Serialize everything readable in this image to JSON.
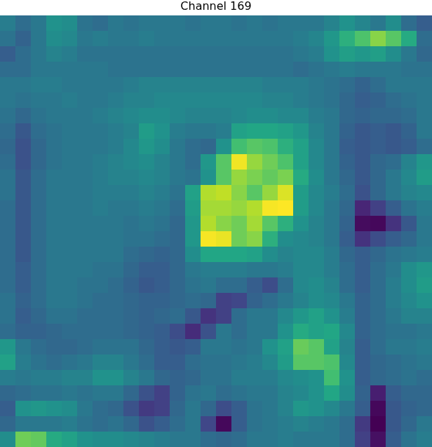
{
  "chart_data": {
    "type": "heatmap",
    "title": "Channel 169",
    "tick_labels": false,
    "cells": [
      [
        0.42,
        0.36,
        0.4,
        0.5,
        0.48,
        0.38,
        0.36,
        0.4,
        0.38,
        0.4,
        0.4,
        0.4,
        0.38,
        0.4,
        0.4,
        0.38,
        0.4,
        0.38,
        0.4,
        0.4,
        0.4,
        0.44,
        0.5,
        0.45,
        0.4,
        0.48,
        0.36,
        0.3
      ],
      [
        0.38,
        0.32,
        0.4,
        0.48,
        0.46,
        0.4,
        0.42,
        0.4,
        0.4,
        0.42,
        0.4,
        0.4,
        0.4,
        0.4,
        0.4,
        0.4,
        0.4,
        0.4,
        0.4,
        0.42,
        0.45,
        0.52,
        0.62,
        0.7,
        0.8,
        0.72,
        0.6,
        0.36
      ],
      [
        0.3,
        0.36,
        0.4,
        0.44,
        0.42,
        0.38,
        0.38,
        0.38,
        0.38,
        0.38,
        0.38,
        0.38,
        0.38,
        0.38,
        0.38,
        0.38,
        0.38,
        0.38,
        0.38,
        0.4,
        0.42,
        0.5,
        0.55,
        0.52,
        0.55,
        0.48,
        0.4,
        0.34
      ],
      [
        0.36,
        0.36,
        0.4,
        0.4,
        0.4,
        0.4,
        0.4,
        0.38,
        0.38,
        0.38,
        0.38,
        0.38,
        0.38,
        0.38,
        0.38,
        0.38,
        0.38,
        0.38,
        0.38,
        0.36,
        0.38,
        0.4,
        0.42,
        0.4,
        0.4,
        0.4,
        0.38,
        0.38
      ],
      [
        0.4,
        0.4,
        0.42,
        0.42,
        0.4,
        0.4,
        0.4,
        0.4,
        0.42,
        0.44,
        0.44,
        0.44,
        0.44,
        0.44,
        0.44,
        0.44,
        0.44,
        0.42,
        0.42,
        0.42,
        0.4,
        0.38,
        0.36,
        0.32,
        0.36,
        0.4,
        0.4,
        0.4
      ],
      [
        0.4,
        0.38,
        0.4,
        0.4,
        0.42,
        0.4,
        0.4,
        0.42,
        0.44,
        0.44,
        0.46,
        0.46,
        0.46,
        0.46,
        0.46,
        0.46,
        0.46,
        0.44,
        0.44,
        0.42,
        0.4,
        0.38,
        0.34,
        0.3,
        0.32,
        0.36,
        0.38,
        0.4
      ],
      [
        0.38,
        0.34,
        0.38,
        0.4,
        0.4,
        0.4,
        0.42,
        0.44,
        0.46,
        0.48,
        0.48,
        0.46,
        0.44,
        0.44,
        0.44,
        0.46,
        0.48,
        0.48,
        0.46,
        0.46,
        0.42,
        0.4,
        0.34,
        0.32,
        0.34,
        0.34,
        0.36,
        0.4
      ],
      [
        0.36,
        0.28,
        0.36,
        0.38,
        0.4,
        0.4,
        0.4,
        0.42,
        0.44,
        0.54,
        0.5,
        0.42,
        0.4,
        0.4,
        0.42,
        0.56,
        0.58,
        0.58,
        0.56,
        0.52,
        0.44,
        0.4,
        0.32,
        0.28,
        0.3,
        0.28,
        0.32,
        0.4
      ],
      [
        0.34,
        0.26,
        0.34,
        0.38,
        0.4,
        0.4,
        0.4,
        0.42,
        0.46,
        0.52,
        0.48,
        0.4,
        0.36,
        0.34,
        0.5,
        0.68,
        0.72,
        0.7,
        0.62,
        0.56,
        0.46,
        0.4,
        0.3,
        0.28,
        0.3,
        0.28,
        0.3,
        0.36
      ],
      [
        0.36,
        0.26,
        0.34,
        0.38,
        0.4,
        0.4,
        0.42,
        0.44,
        0.46,
        0.48,
        0.44,
        0.4,
        0.36,
        0.52,
        0.72,
        0.95,
        0.82,
        0.76,
        0.7,
        0.56,
        0.46,
        0.4,
        0.32,
        0.28,
        0.34,
        0.36,
        0.44,
        0.52
      ],
      [
        0.38,
        0.28,
        0.36,
        0.4,
        0.4,
        0.4,
        0.42,
        0.44,
        0.44,
        0.46,
        0.44,
        0.4,
        0.38,
        0.5,
        0.72,
        0.82,
        0.78,
        0.74,
        0.78,
        0.6,
        0.48,
        0.4,
        0.34,
        0.28,
        0.34,
        0.4,
        0.46,
        0.54
      ],
      [
        0.38,
        0.28,
        0.36,
        0.4,
        0.4,
        0.4,
        0.42,
        0.42,
        0.42,
        0.44,
        0.42,
        0.38,
        0.56,
        0.86,
        0.88,
        0.8,
        0.72,
        0.82,
        0.92,
        0.54,
        0.46,
        0.42,
        0.36,
        0.26,
        0.34,
        0.4,
        0.44,
        0.46
      ],
      [
        0.36,
        0.28,
        0.36,
        0.4,
        0.4,
        0.4,
        0.42,
        0.4,
        0.4,
        0.42,
        0.4,
        0.36,
        0.54,
        0.84,
        0.84,
        0.82,
        0.86,
        0.96,
        0.97,
        0.54,
        0.46,
        0.4,
        0.34,
        0.12,
        0.2,
        0.3,
        0.38,
        0.42
      ],
      [
        0.36,
        0.28,
        0.36,
        0.4,
        0.4,
        0.4,
        0.4,
        0.4,
        0.38,
        0.4,
        0.38,
        0.34,
        0.52,
        0.86,
        0.8,
        0.76,
        0.84,
        0.72,
        0.62,
        0.5,
        0.44,
        0.4,
        0.32,
        0.05,
        0.04,
        0.16,
        0.28,
        0.4
      ],
      [
        0.36,
        0.28,
        0.36,
        0.4,
        0.4,
        0.4,
        0.4,
        0.4,
        0.38,
        0.38,
        0.36,
        0.34,
        0.52,
        0.96,
        0.94,
        0.76,
        0.8,
        0.62,
        0.48,
        0.46,
        0.44,
        0.4,
        0.3,
        0.16,
        0.24,
        0.3,
        0.34,
        0.4
      ],
      [
        0.36,
        0.28,
        0.36,
        0.4,
        0.4,
        0.4,
        0.4,
        0.4,
        0.36,
        0.34,
        0.32,
        0.34,
        0.48,
        0.58,
        0.58,
        0.58,
        0.56,
        0.48,
        0.44,
        0.46,
        0.46,
        0.42,
        0.34,
        0.3,
        0.34,
        0.38,
        0.4,
        0.42
      ],
      [
        0.36,
        0.3,
        0.36,
        0.4,
        0.4,
        0.4,
        0.38,
        0.38,
        0.34,
        0.3,
        0.3,
        0.34,
        0.4,
        0.42,
        0.42,
        0.42,
        0.4,
        0.4,
        0.42,
        0.46,
        0.46,
        0.42,
        0.36,
        0.3,
        0.36,
        0.4,
        0.48,
        0.52
      ],
      [
        0.36,
        0.3,
        0.36,
        0.4,
        0.4,
        0.38,
        0.38,
        0.36,
        0.32,
        0.28,
        0.3,
        0.34,
        0.38,
        0.4,
        0.36,
        0.36,
        0.3,
        0.24,
        0.36,
        0.46,
        0.48,
        0.44,
        0.36,
        0.3,
        0.36,
        0.42,
        0.48,
        0.54
      ],
      [
        0.38,
        0.32,
        0.36,
        0.4,
        0.4,
        0.38,
        0.36,
        0.36,
        0.34,
        0.32,
        0.32,
        0.34,
        0.36,
        0.34,
        0.2,
        0.22,
        0.32,
        0.36,
        0.4,
        0.44,
        0.48,
        0.46,
        0.4,
        0.32,
        0.36,
        0.42,
        0.46,
        0.5
      ],
      [
        0.38,
        0.3,
        0.34,
        0.38,
        0.38,
        0.36,
        0.36,
        0.36,
        0.34,
        0.32,
        0.34,
        0.36,
        0.28,
        0.16,
        0.2,
        0.36,
        0.4,
        0.4,
        0.46,
        0.52,
        0.56,
        0.5,
        0.42,
        0.32,
        0.36,
        0.4,
        0.44,
        0.44
      ],
      [
        0.36,
        0.32,
        0.32,
        0.34,
        0.36,
        0.36,
        0.36,
        0.36,
        0.34,
        0.32,
        0.3,
        0.24,
        0.14,
        0.26,
        0.4,
        0.36,
        0.4,
        0.4,
        0.5,
        0.6,
        0.56,
        0.58,
        0.46,
        0.32,
        0.36,
        0.38,
        0.38,
        0.4
      ],
      [
        0.52,
        0.4,
        0.36,
        0.34,
        0.34,
        0.36,
        0.38,
        0.38,
        0.38,
        0.34,
        0.3,
        0.28,
        0.3,
        0.4,
        0.4,
        0.38,
        0.4,
        0.5,
        0.56,
        0.75,
        0.72,
        0.56,
        0.44,
        0.3,
        0.36,
        0.4,
        0.4,
        0.42
      ],
      [
        0.56,
        0.42,
        0.38,
        0.36,
        0.38,
        0.4,
        0.44,
        0.44,
        0.4,
        0.36,
        0.3,
        0.3,
        0.36,
        0.38,
        0.38,
        0.4,
        0.42,
        0.46,
        0.54,
        0.72,
        0.72,
        0.7,
        0.46,
        0.3,
        0.34,
        0.36,
        0.38,
        0.4
      ],
      [
        0.42,
        0.4,
        0.42,
        0.42,
        0.44,
        0.44,
        0.5,
        0.5,
        0.44,
        0.4,
        0.34,
        0.32,
        0.34,
        0.38,
        0.38,
        0.42,
        0.42,
        0.42,
        0.46,
        0.48,
        0.5,
        0.68,
        0.5,
        0.3,
        0.34,
        0.36,
        0.38,
        0.36
      ],
      [
        0.34,
        0.36,
        0.38,
        0.38,
        0.4,
        0.38,
        0.4,
        0.4,
        0.34,
        0.26,
        0.2,
        0.32,
        0.38,
        0.4,
        0.36,
        0.38,
        0.4,
        0.4,
        0.44,
        0.46,
        0.5,
        0.58,
        0.48,
        0.32,
        0.1,
        0.3,
        0.34,
        0.34
      ],
      [
        0.3,
        0.5,
        0.52,
        0.5,
        0.48,
        0.4,
        0.36,
        0.34,
        0.26,
        0.18,
        0.2,
        0.34,
        0.4,
        0.34,
        0.24,
        0.3,
        0.38,
        0.4,
        0.44,
        0.52,
        0.5,
        0.46,
        0.4,
        0.3,
        0.04,
        0.28,
        0.32,
        0.34
      ],
      [
        0.34,
        0.4,
        0.4,
        0.4,
        0.42,
        0.38,
        0.36,
        0.38,
        0.34,
        0.26,
        0.3,
        0.36,
        0.4,
        0.22,
        0.04,
        0.3,
        0.38,
        0.4,
        0.42,
        0.44,
        0.42,
        0.4,
        0.36,
        0.18,
        0.02,
        0.28,
        0.34,
        0.4
      ],
      [
        0.48,
        0.76,
        0.74,
        0.6,
        0.56,
        0.5,
        0.48,
        0.48,
        0.46,
        0.44,
        0.42,
        0.4,
        0.4,
        0.36,
        0.34,
        0.36,
        0.4,
        0.4,
        0.42,
        0.4,
        0.4,
        0.4,
        0.36,
        0.2,
        0.06,
        0.3,
        0.38,
        0.42
      ]
    ]
  }
}
